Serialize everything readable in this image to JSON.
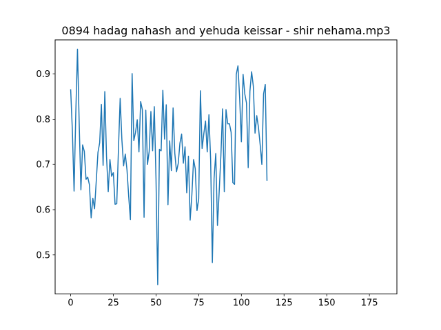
{
  "chart_data": {
    "type": "line",
    "title": "0894 hadag nahash and yehuda keissar - shir nehama.mp3",
    "xlabel": "",
    "ylabel": "",
    "xlim": [
      -9.1,
      191.1
    ],
    "ylim": [
      0.4136,
      0.9755
    ],
    "xticks": [
      0,
      25,
      50,
      75,
      100,
      125,
      150,
      175
    ],
    "yticks": [
      0.5,
      0.6,
      0.7,
      0.8,
      0.9
    ],
    "ytick_labels": [
      "0.5",
      "0.6",
      "0.7",
      "0.8",
      "0.9"
    ],
    "grid": false,
    "line_color": "#1f77b4",
    "series": [
      {
        "values": [
          0.866,
          0.775,
          0.641,
          0.812,
          0.955,
          0.791,
          0.644,
          0.743,
          0.729,
          0.667,
          0.672,
          0.655,
          0.582,
          0.625,
          0.602,
          0.664,
          0.727,
          0.748,
          0.833,
          0.698,
          0.861,
          0.718,
          0.64,
          0.711,
          0.674,
          0.682,
          0.612,
          0.613,
          0.735,
          0.846,
          0.755,
          0.697,
          0.723,
          0.688,
          0.629,
          0.578,
          0.901,
          0.753,
          0.771,
          0.799,
          0.728,
          0.839,
          0.821,
          0.583,
          0.82,
          0.7,
          0.729,
          0.817,
          0.73,
          0.828,
          0.667,
          0.434,
          0.733,
          0.73,
          0.864,
          0.756,
          0.832,
          0.611,
          0.752,
          0.686,
          0.825,
          0.725,
          0.684,
          0.702,
          0.747,
          0.767,
          0.703,
          0.739,
          0.637,
          0.718,
          0.577,
          0.633,
          0.711,
          0.69,
          0.598,
          0.624,
          0.863,
          0.735,
          0.768,
          0.796,
          0.728,
          0.81,
          0.71,
          0.483,
          0.669,
          0.724,
          0.565,
          0.64,
          0.72,
          0.823,
          0.64,
          0.821,
          0.79,
          0.79,
          0.771,
          0.66,
          0.656,
          0.899,
          0.918,
          0.846,
          0.75,
          0.899,
          0.856,
          0.836,
          0.693,
          0.862,
          0.905,
          0.873,
          0.769,
          0.808,
          0.782,
          0.744,
          0.7,
          0.856,
          0.877,
          0.664
        ]
      }
    ]
  }
}
